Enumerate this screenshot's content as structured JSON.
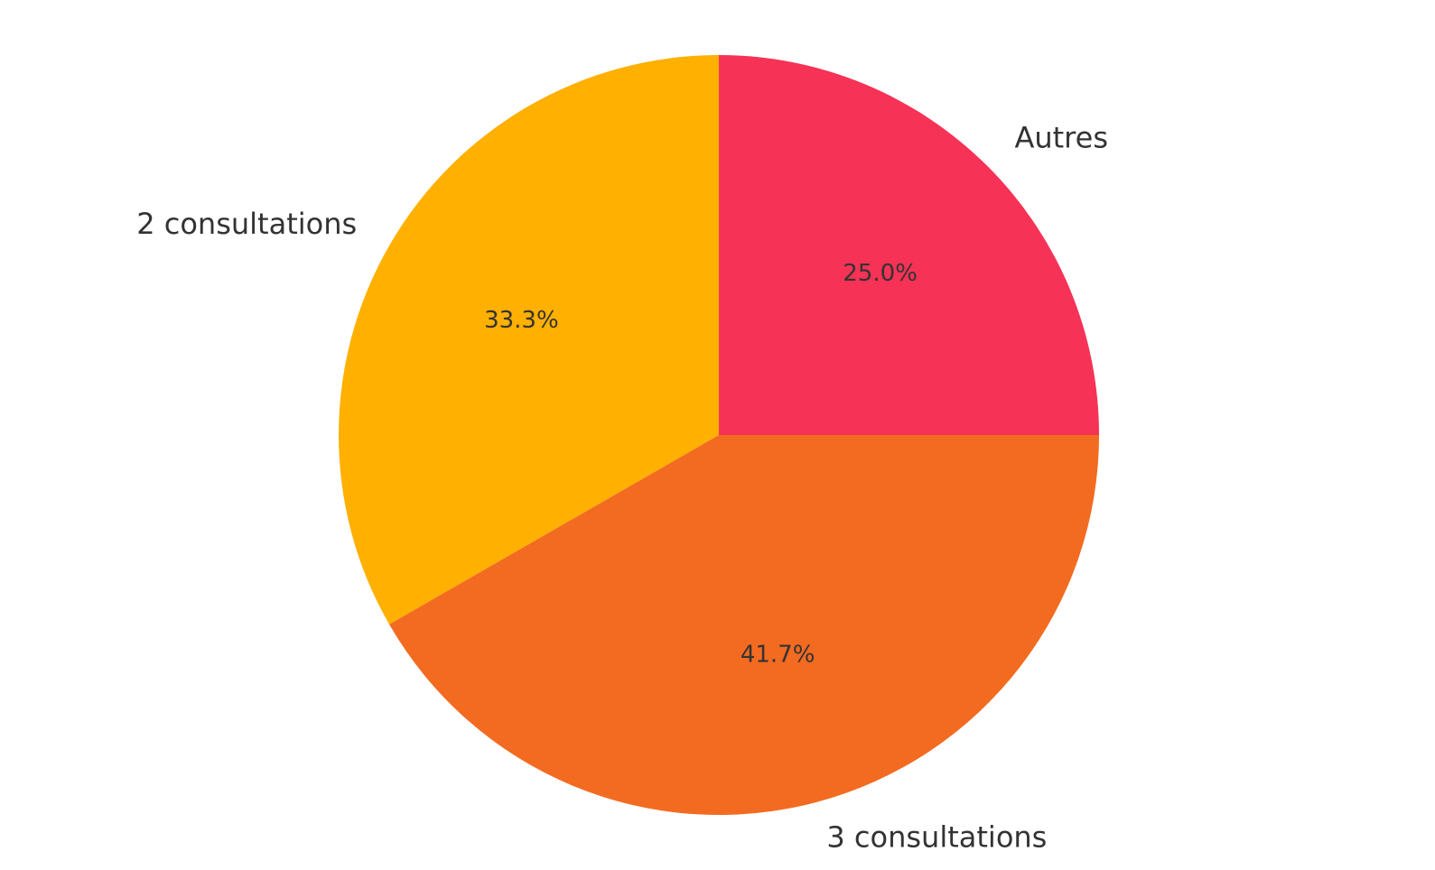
{
  "chart_data": {
    "type": "pie",
    "start_angle_deg": 90,
    "direction": "clockwise",
    "slices": [
      {
        "label": "Autres",
        "value": 25.0,
        "pct_label": "25.0%",
        "color": "#F63256"
      },
      {
        "label": "3 consultations",
        "value": 41.7,
        "pct_label": "41.7%",
        "color": "#F36B21"
      },
      {
        "label": "2 consultations",
        "value": 33.3,
        "pct_label": "33.3%",
        "color": "#FFB000"
      }
    ]
  }
}
